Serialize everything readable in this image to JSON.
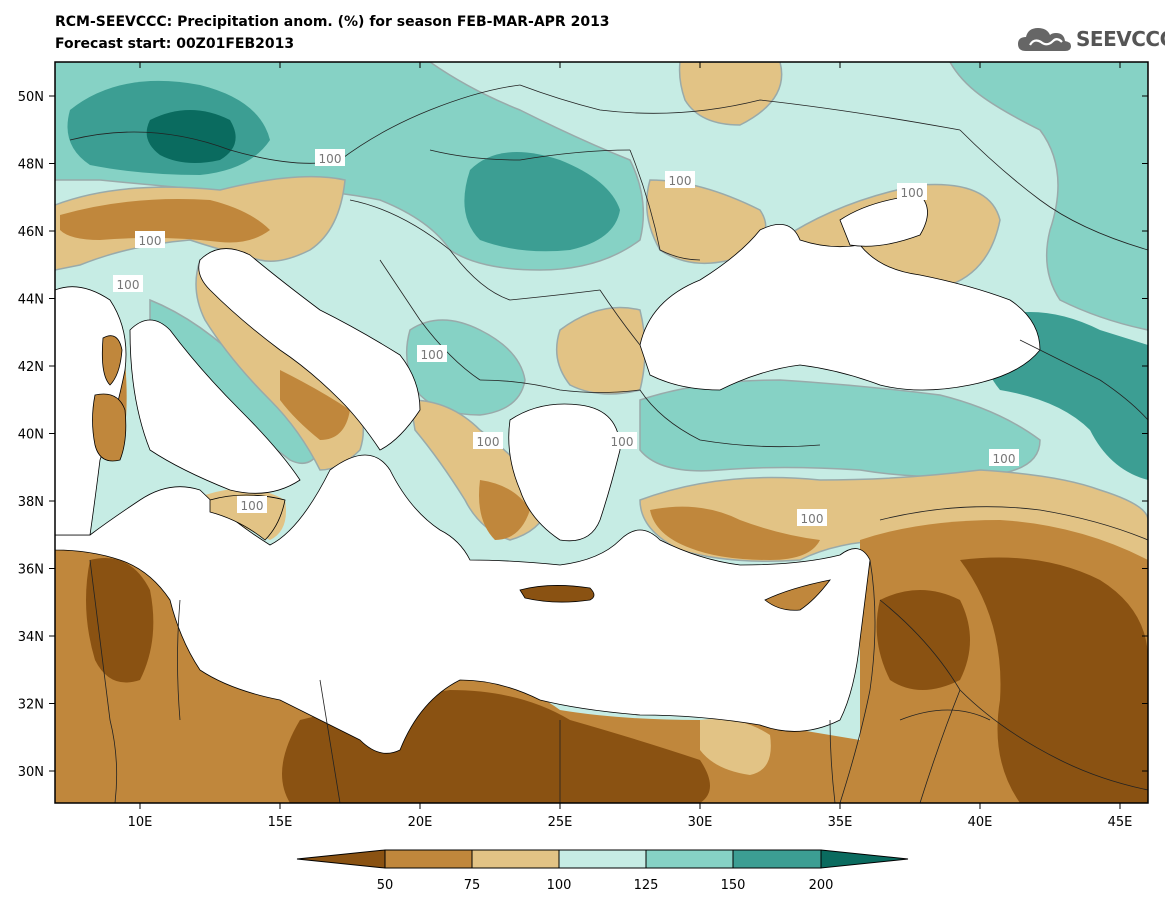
{
  "header": {
    "title": "RCM-SEEVCCC: Precipitation anom. (%) for season FEB-MAR-APR 2013",
    "subtitle": "Forecast start: 00Z01FEB2013"
  },
  "logo": {
    "text": "SEEVCCC"
  },
  "map": {
    "lat_labels": [
      "50N",
      "48N",
      "46N",
      "44N",
      "42N",
      "40N",
      "38N",
      "36N",
      "34N",
      "32N",
      "30N"
    ],
    "lon_labels": [
      "10E",
      "15E",
      "20E",
      "25E",
      "30E",
      "35E",
      "40E",
      "45E"
    ],
    "contour_labels": [
      "100",
      "100",
      "100",
      "100",
      "100",
      "100",
      "100",
      "100",
      "100",
      "100",
      "100"
    ]
  },
  "legend": {
    "ticks": [
      "50",
      "75",
      "100",
      "125",
      "150",
      "200"
    ],
    "colors": [
      "#8a5212",
      "#c0873c",
      "#e2c385",
      "#c6ece4",
      "#86d2c5",
      "#3c9e93",
      "#0a6b5f"
    ]
  }
}
